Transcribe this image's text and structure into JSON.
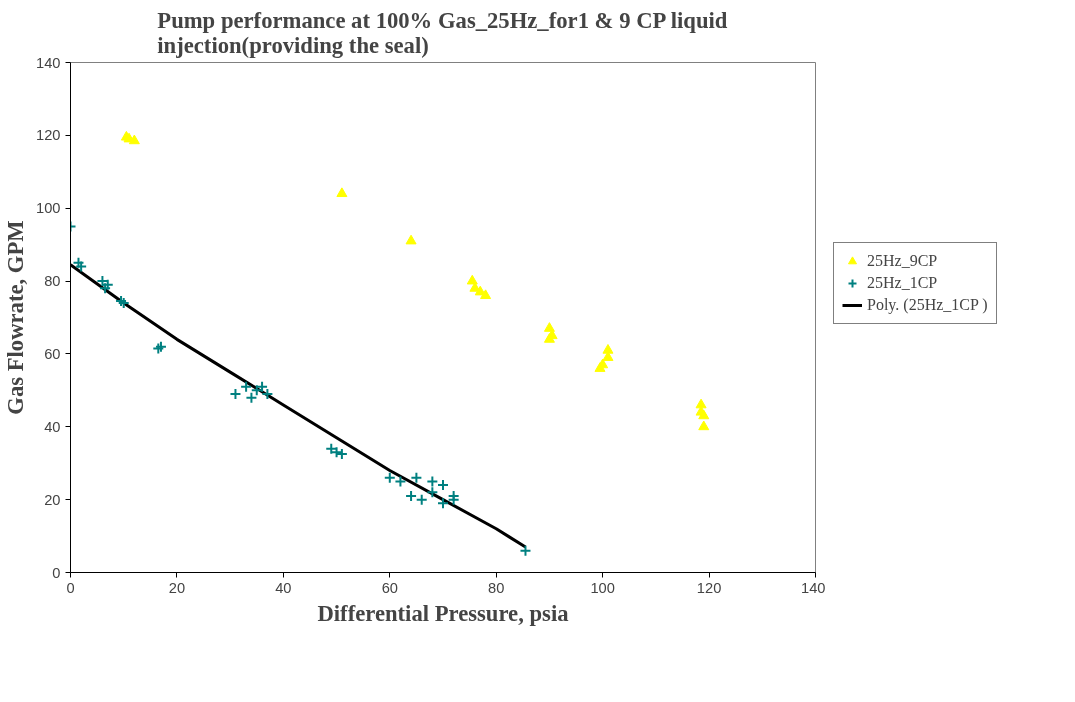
{
  "chart_data": {
    "type": "scatter",
    "title": "Pump performance at 100% Gas_25Hz_for1 & 9 CP liquid injection(providing the seal)",
    "xlabel": "Differential Pressure, psia",
    "ylabel": "Gas Flowrate, GPM",
    "xlim": [
      0,
      140
    ],
    "ylim": [
      0,
      140
    ],
    "xticks": [
      0,
      20,
      40,
      60,
      80,
      100,
      120,
      140
    ],
    "yticks": [
      0,
      20,
      40,
      60,
      80,
      100,
      120,
      140
    ],
    "grid": false,
    "legend": "right",
    "series": [
      {
        "name": "25Hz_9CP",
        "color": "#ffff00",
        "marker": "triangle",
        "x": [
          10.5,
          11,
          12,
          51,
          64,
          75.5,
          76,
          77,
          78,
          90,
          90.5,
          90,
          99.5,
          100,
          101,
          101,
          118.5,
          119,
          118.5,
          119
        ],
        "values": [
          119.5,
          119,
          118.5,
          104,
          91,
          80,
          78,
          77,
          76,
          67,
          65,
          64,
          56,
          57,
          59,
          61,
          46,
          43,
          44,
          40
        ]
      },
      {
        "name": "25Hz_1CP",
        "color": "#008080",
        "marker": "cross",
        "x": [
          0,
          1.5,
          2,
          6,
          7,
          6.5,
          9.5,
          10,
          16.5,
          17,
          31,
          33,
          34,
          35,
          36,
          37,
          49,
          50,
          51,
          60,
          62,
          64,
          65,
          66,
          68,
          68,
          70,
          70,
          72,
          72,
          85.5
        ],
        "values": [
          95,
          85,
          84,
          80,
          79,
          78,
          74.5,
          74,
          61.5,
          62,
          49,
          51,
          48,
          50,
          51,
          49,
          34,
          33,
          32.5,
          26,
          25,
          21,
          26,
          20,
          25,
          22,
          24,
          19,
          21,
          20,
          6
        ]
      },
      {
        "name": "Poly. (25Hz_1CP )",
        "color": "#000000",
        "type": "line",
        "marker": "none",
        "x": [
          0,
          10,
          20,
          30,
          40,
          50,
          60,
          70,
          80,
          85.5
        ],
        "values": [
          84.5,
          74,
          64,
          55,
          46,
          37,
          28,
          20,
          12,
          7
        ]
      }
    ]
  }
}
